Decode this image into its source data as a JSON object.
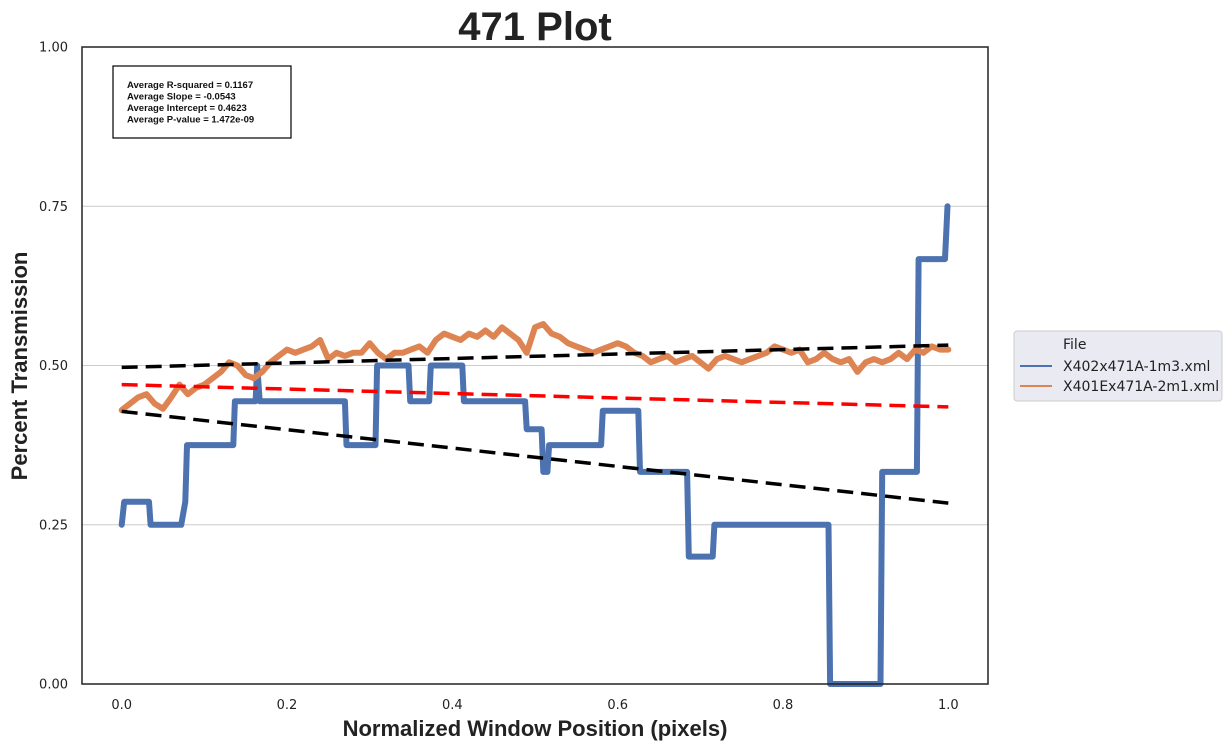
{
  "chart_data": {
    "type": "line",
    "title": "471 Plot",
    "xlabel": "Normalized Window Position (pixels)",
    "ylabel": "Percent Transmission",
    "xlim": [
      -0.048,
      1.048
    ],
    "ylim": [
      0.0,
      1.0
    ],
    "x_ticks": [
      0.0,
      0.2,
      0.4,
      0.6,
      0.8,
      1.0
    ],
    "x_tick_labels": [
      "0.0",
      "0.2",
      "0.4",
      "0.6",
      "0.8",
      "1.0"
    ],
    "y_ticks": [
      0.0,
      0.25,
      0.5,
      0.75,
      1.0
    ],
    "y_tick_labels": [
      "0.00",
      "0.25",
      "0.50",
      "0.75",
      "1.00"
    ],
    "grid": "horizontal",
    "stats_box": [
      "Average R-squared = 0.1167",
      "Average Slope = -0.0543",
      "Average Intercept = 0.4623",
      "Average P-value = 1.472e-09"
    ],
    "legend": {
      "title": "File",
      "placement": "outside-right",
      "entries": [
        {
          "label": "X402x471A-1m3.xml",
          "color": "#4c72b0"
        },
        {
          "label": "X401Ex471A-2m1.xml",
          "color": "#dd8452"
        }
      ]
    },
    "series": [
      {
        "name": "X402x471A-1m3.xml",
        "color": "#4c72b0",
        "step": true,
        "points": [
          [
            0.0,
            0.25
          ],
          [
            0.003,
            0.286
          ],
          [
            0.033,
            0.286
          ],
          [
            0.035,
            0.25
          ],
          [
            0.072,
            0.25
          ],
          [
            0.077,
            0.286
          ],
          [
            0.079,
            0.375
          ],
          [
            0.135,
            0.375
          ],
          [
            0.137,
            0.444
          ],
          [
            0.162,
            0.444
          ],
          [
            0.164,
            0.5
          ],
          [
            0.167,
            0.444
          ],
          [
            0.27,
            0.444
          ],
          [
            0.272,
            0.375
          ],
          [
            0.307,
            0.375
          ],
          [
            0.309,
            0.5
          ],
          [
            0.347,
            0.5
          ],
          [
            0.349,
            0.444
          ],
          [
            0.372,
            0.444
          ],
          [
            0.374,
            0.5
          ],
          [
            0.412,
            0.5
          ],
          [
            0.414,
            0.444
          ],
          [
            0.488,
            0.444
          ],
          [
            0.49,
            0.4
          ],
          [
            0.508,
            0.4
          ],
          [
            0.51,
            0.333
          ],
          [
            0.515,
            0.333
          ],
          [
            0.517,
            0.375
          ],
          [
            0.58,
            0.375
          ],
          [
            0.582,
            0.429
          ],
          [
            0.625,
            0.429
          ],
          [
            0.627,
            0.333
          ],
          [
            0.684,
            0.333
          ],
          [
            0.686,
            0.2
          ],
          [
            0.715,
            0.2
          ],
          [
            0.717,
            0.25
          ],
          [
            0.855,
            0.25
          ],
          [
            0.857,
            0.0
          ],
          [
            0.918,
            0.0
          ],
          [
            0.92,
            0.333
          ],
          [
            0.962,
            0.333
          ],
          [
            0.964,
            0.667
          ],
          [
            0.996,
            0.667
          ],
          [
            0.999,
            0.75
          ]
        ]
      },
      {
        "name": "X401Ex471A-2m1.xml",
        "color": "#dd8452",
        "step": false,
        "points": [
          [
            0.0,
            0.43
          ],
          [
            0.01,
            0.44
          ],
          [
            0.02,
            0.45
          ],
          [
            0.03,
            0.455
          ],
          [
            0.04,
            0.44
          ],
          [
            0.05,
            0.432
          ],
          [
            0.06,
            0.45
          ],
          [
            0.07,
            0.47
          ],
          [
            0.08,
            0.455
          ],
          [
            0.09,
            0.465
          ],
          [
            0.1,
            0.47
          ],
          [
            0.11,
            0.48
          ],
          [
            0.12,
            0.49
          ],
          [
            0.13,
            0.505
          ],
          [
            0.14,
            0.5
          ],
          [
            0.15,
            0.485
          ],
          [
            0.16,
            0.48
          ],
          [
            0.17,
            0.49
          ],
          [
            0.18,
            0.505
          ],
          [
            0.19,
            0.515
          ],
          [
            0.2,
            0.525
          ],
          [
            0.21,
            0.52
          ],
          [
            0.22,
            0.525
          ],
          [
            0.23,
            0.53
          ],
          [
            0.24,
            0.54
          ],
          [
            0.25,
            0.51
          ],
          [
            0.26,
            0.52
          ],
          [
            0.27,
            0.515
          ],
          [
            0.28,
            0.52
          ],
          [
            0.29,
            0.52
          ],
          [
            0.3,
            0.535
          ],
          [
            0.31,
            0.52
          ],
          [
            0.32,
            0.51
          ],
          [
            0.33,
            0.52
          ],
          [
            0.34,
            0.52
          ],
          [
            0.35,
            0.525
          ],
          [
            0.36,
            0.53
          ],
          [
            0.37,
            0.52
          ],
          [
            0.38,
            0.54
          ],
          [
            0.39,
            0.55
          ],
          [
            0.4,
            0.545
          ],
          [
            0.41,
            0.54
          ],
          [
            0.42,
            0.55
          ],
          [
            0.43,
            0.545
          ],
          [
            0.44,
            0.555
          ],
          [
            0.45,
            0.545
          ],
          [
            0.46,
            0.56
          ],
          [
            0.47,
            0.55
          ],
          [
            0.48,
            0.54
          ],
          [
            0.49,
            0.52
          ],
          [
            0.5,
            0.56
          ],
          [
            0.51,
            0.565
          ],
          [
            0.52,
            0.55
          ],
          [
            0.53,
            0.545
          ],
          [
            0.54,
            0.535
          ],
          [
            0.55,
            0.53
          ],
          [
            0.56,
            0.525
          ],
          [
            0.57,
            0.52
          ],
          [
            0.58,
            0.525
          ],
          [
            0.59,
            0.53
          ],
          [
            0.6,
            0.535
          ],
          [
            0.61,
            0.53
          ],
          [
            0.62,
            0.52
          ],
          [
            0.63,
            0.515
          ],
          [
            0.64,
            0.505
          ],
          [
            0.65,
            0.51
          ],
          [
            0.66,
            0.515
          ],
          [
            0.67,
            0.505
          ],
          [
            0.68,
            0.51
          ],
          [
            0.69,
            0.515
          ],
          [
            0.7,
            0.505
          ],
          [
            0.71,
            0.495
          ],
          [
            0.72,
            0.51
          ],
          [
            0.73,
            0.515
          ],
          [
            0.74,
            0.51
          ],
          [
            0.75,
            0.505
          ],
          [
            0.76,
            0.51
          ],
          [
            0.77,
            0.515
          ],
          [
            0.78,
            0.52
          ],
          [
            0.79,
            0.53
          ],
          [
            0.8,
            0.525
          ],
          [
            0.81,
            0.52
          ],
          [
            0.82,
            0.525
          ],
          [
            0.83,
            0.505
          ],
          [
            0.84,
            0.51
          ],
          [
            0.85,
            0.52
          ],
          [
            0.86,
            0.51
          ],
          [
            0.87,
            0.505
          ],
          [
            0.88,
            0.51
          ],
          [
            0.89,
            0.49
          ],
          [
            0.9,
            0.505
          ],
          [
            0.91,
            0.51
          ],
          [
            0.92,
            0.505
          ],
          [
            0.93,
            0.51
          ],
          [
            0.94,
            0.52
          ],
          [
            0.95,
            0.51
          ],
          [
            0.96,
            0.525
          ],
          [
            0.97,
            0.52
          ],
          [
            0.98,
            0.53
          ],
          [
            0.99,
            0.525
          ],
          [
            1.0,
            0.525
          ]
        ]
      }
    ],
    "fit_lines": [
      {
        "color": "#000000",
        "dashed": true,
        "x": [
          0.0,
          1.0
        ],
        "y": [
          0.497,
          0.532
        ]
      },
      {
        "color": "#ff0000",
        "dashed": true,
        "x": [
          0.0,
          1.0
        ],
        "y": [
          0.47,
          0.435
        ]
      },
      {
        "color": "#000000",
        "dashed": true,
        "x": [
          0.0,
          1.0
        ],
        "y": [
          0.428,
          0.284
        ]
      }
    ]
  }
}
